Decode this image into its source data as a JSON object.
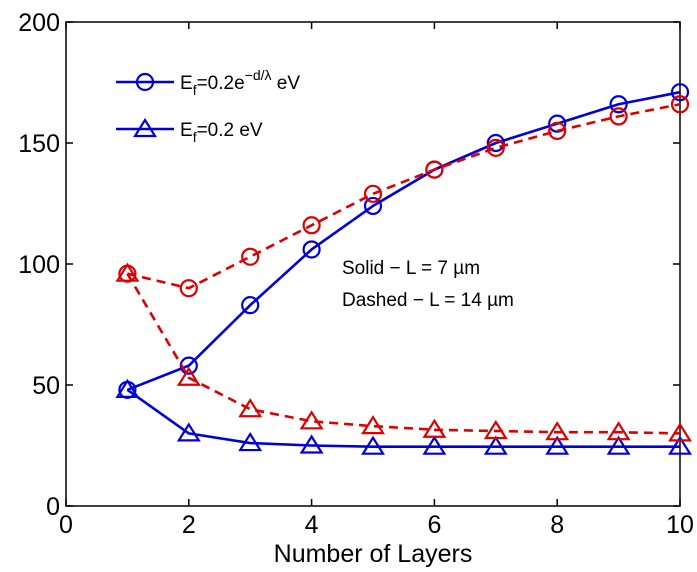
{
  "chart_data": {
    "type": "line",
    "xlabel": "Number of Layers",
    "ylabel": "",
    "xlim": [
      0,
      10
    ],
    "ylim": [
      0,
      200
    ],
    "xticks": [
      0,
      2,
      4,
      6,
      8,
      10
    ],
    "yticks": [
      0,
      50,
      100,
      150,
      200
    ],
    "x": [
      1,
      2,
      3,
      4,
      5,
      6,
      7,
      8,
      9,
      10
    ],
    "grid": false,
    "legend_position": "top-left",
    "series": [
      {
        "name": "E_f=0.2e^{-d/λ} eV",
        "legend": true,
        "color": "#0000dd",
        "dash": "solid",
        "marker": "circle",
        "L": "7 µm",
        "values": [
          48,
          58,
          83,
          106,
          124,
          139,
          150,
          158,
          166,
          171
        ]
      },
      {
        "name": "",
        "legend": false,
        "color": "#dd0000",
        "dash": "dashed",
        "marker": "circle",
        "L": "14 µm",
        "values": [
          96,
          90,
          103,
          116,
          129,
          139,
          148,
          155,
          161,
          166
        ]
      },
      {
        "name": "E_f=0.2 eV",
        "legend": true,
        "color": "#0000dd",
        "dash": "solid",
        "marker": "triangle",
        "L": "7 µm",
        "values": [
          48,
          30,
          26,
          25,
          24.5,
          24.5,
          24.5,
          24.5,
          24.5,
          24.5
        ]
      },
      {
        "name": "",
        "legend": false,
        "color": "#dd0000",
        "dash": "dashed",
        "marker": "triangle",
        "L": "14 µm",
        "values": [
          96,
          53,
          40,
          35,
          33,
          31.5,
          31,
          30.5,
          30.5,
          30
        ]
      }
    ],
    "legend": [
      {
        "main": "E",
        "sub": "f",
        "mid": "=0.2e",
        "sup": "−d/λ",
        "tail": " eV",
        "marker": "circle",
        "color": "#0000dd"
      },
      {
        "main": "E",
        "sub": "f",
        "mid": "=0.2 eV",
        "sup": "",
        "tail": "",
        "marker": "triangle",
        "color": "#0000dd"
      }
    ],
    "annotations": [
      "Solid − L = 7 µm",
      "Dashed − L = 14 µm"
    ]
  }
}
